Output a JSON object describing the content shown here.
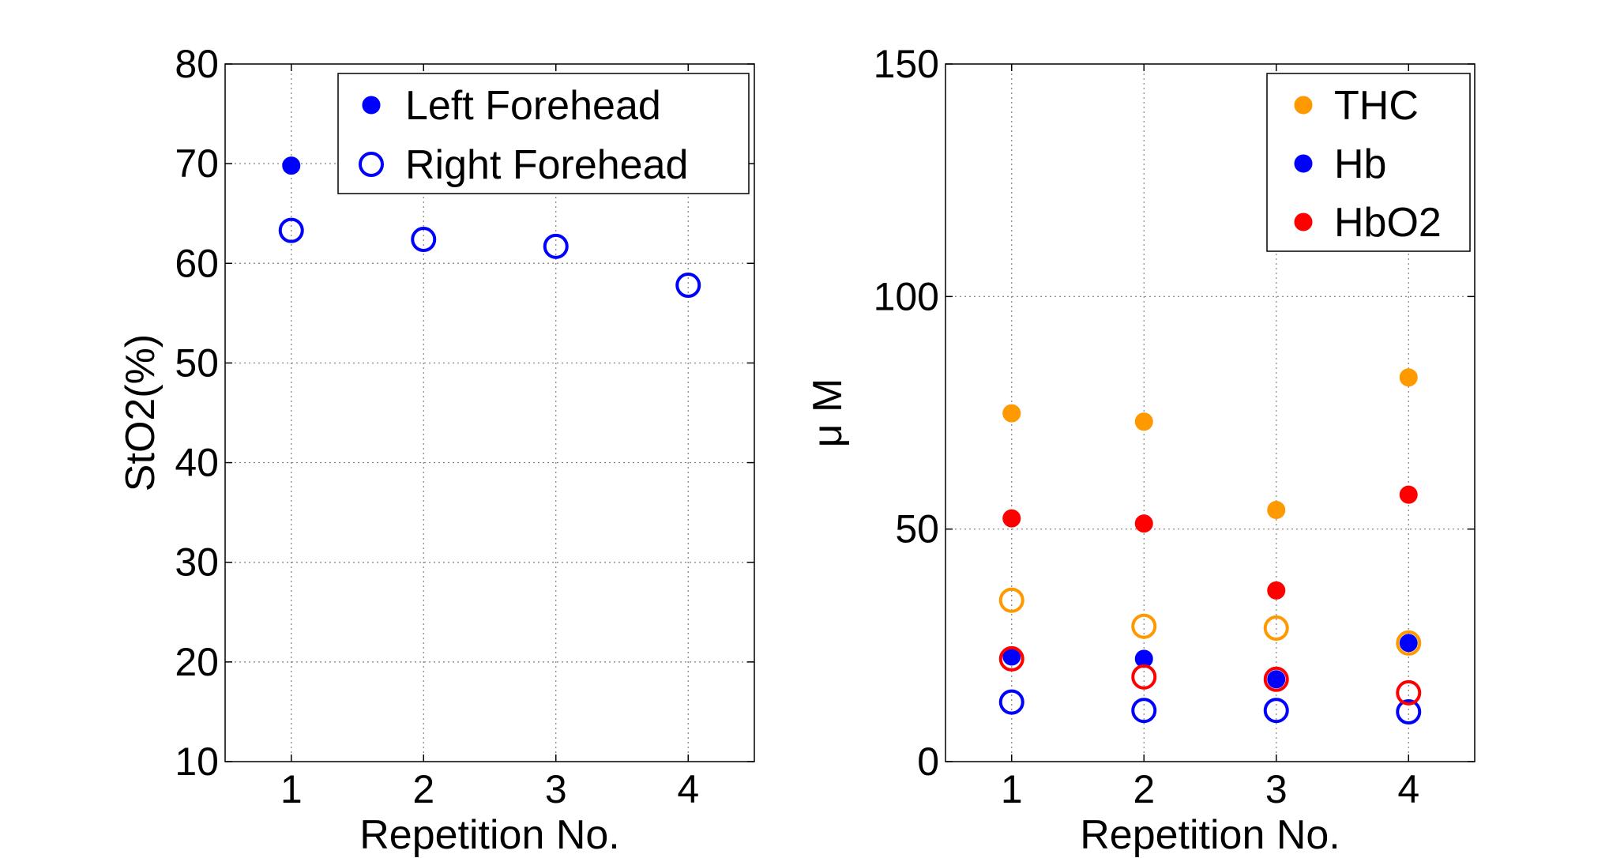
{
  "chart_data": [
    {
      "type": "scatter",
      "xlabel": "Repetition No.",
      "ylabel": "StO2(%)",
      "xlim": [
        0.5,
        4.5
      ],
      "ylim": [
        10,
        80
      ],
      "xticks": [
        1,
        2,
        3,
        4
      ],
      "yticks": [
        10,
        20,
        30,
        40,
        50,
        60,
        70,
        80
      ],
      "grid": true,
      "legend_position": "top-right",
      "series": [
        {
          "name": "Left Forehead",
          "color": "#0000ff",
          "marker": "filled-circle",
          "x": [
            1
          ],
          "y": [
            69.8
          ]
        },
        {
          "name": "Right Forehead",
          "color": "#0000ff",
          "marker": "open-circle",
          "x": [
            1,
            2,
            3,
            4
          ],
          "y": [
            63.3,
            62.4,
            61.7,
            57.8
          ]
        }
      ]
    },
    {
      "type": "scatter",
      "xlabel": "Repetition No.",
      "ylabel": "μ M",
      "xlim": [
        0.5,
        4.5
      ],
      "ylim": [
        0,
        150
      ],
      "xticks": [
        1,
        2,
        3,
        4
      ],
      "yticks": [
        0,
        50,
        100,
        150
      ],
      "grid": true,
      "legend_position": "top-right",
      "legend": [
        {
          "name": "THC",
          "color": "#ff9900"
        },
        {
          "name": "Hb",
          "color": "#0000ff"
        },
        {
          "name": "HbO2",
          "color": "#ff0000"
        }
      ],
      "series": [
        {
          "color": "#ff9900",
          "marker": "filled-circle",
          "x": [
            1,
            2,
            3,
            4
          ],
          "y": [
            74.9,
            73.1,
            54.1,
            82.6
          ]
        },
        {
          "color": "#0000ff",
          "marker": "filled-circle",
          "x": [
            1,
            2,
            3,
            4
          ],
          "y": [
            22.6,
            22.1,
            17.7,
            25.5
          ]
        },
        {
          "color": "#ff0000",
          "marker": "filled-circle",
          "x": [
            1,
            2,
            3,
            4
          ],
          "y": [
            52.3,
            51.2,
            36.8,
            57.4
          ]
        },
        {
          "color": "#ff9900",
          "marker": "open-circle",
          "x": [
            1,
            2,
            3,
            4
          ],
          "y": [
            34.7,
            29.1,
            28.7,
            25.5
          ]
        },
        {
          "color": "#0000ff",
          "marker": "open-circle",
          "x": [
            1,
            2,
            3,
            4
          ],
          "y": [
            12.8,
            11.0,
            11.0,
            10.7
          ]
        },
        {
          "color": "#ff0000",
          "marker": "open-circle",
          "x": [
            1,
            2,
            3,
            4
          ],
          "y": [
            22.1,
            18.2,
            17.7,
            14.8
          ]
        }
      ]
    }
  ]
}
